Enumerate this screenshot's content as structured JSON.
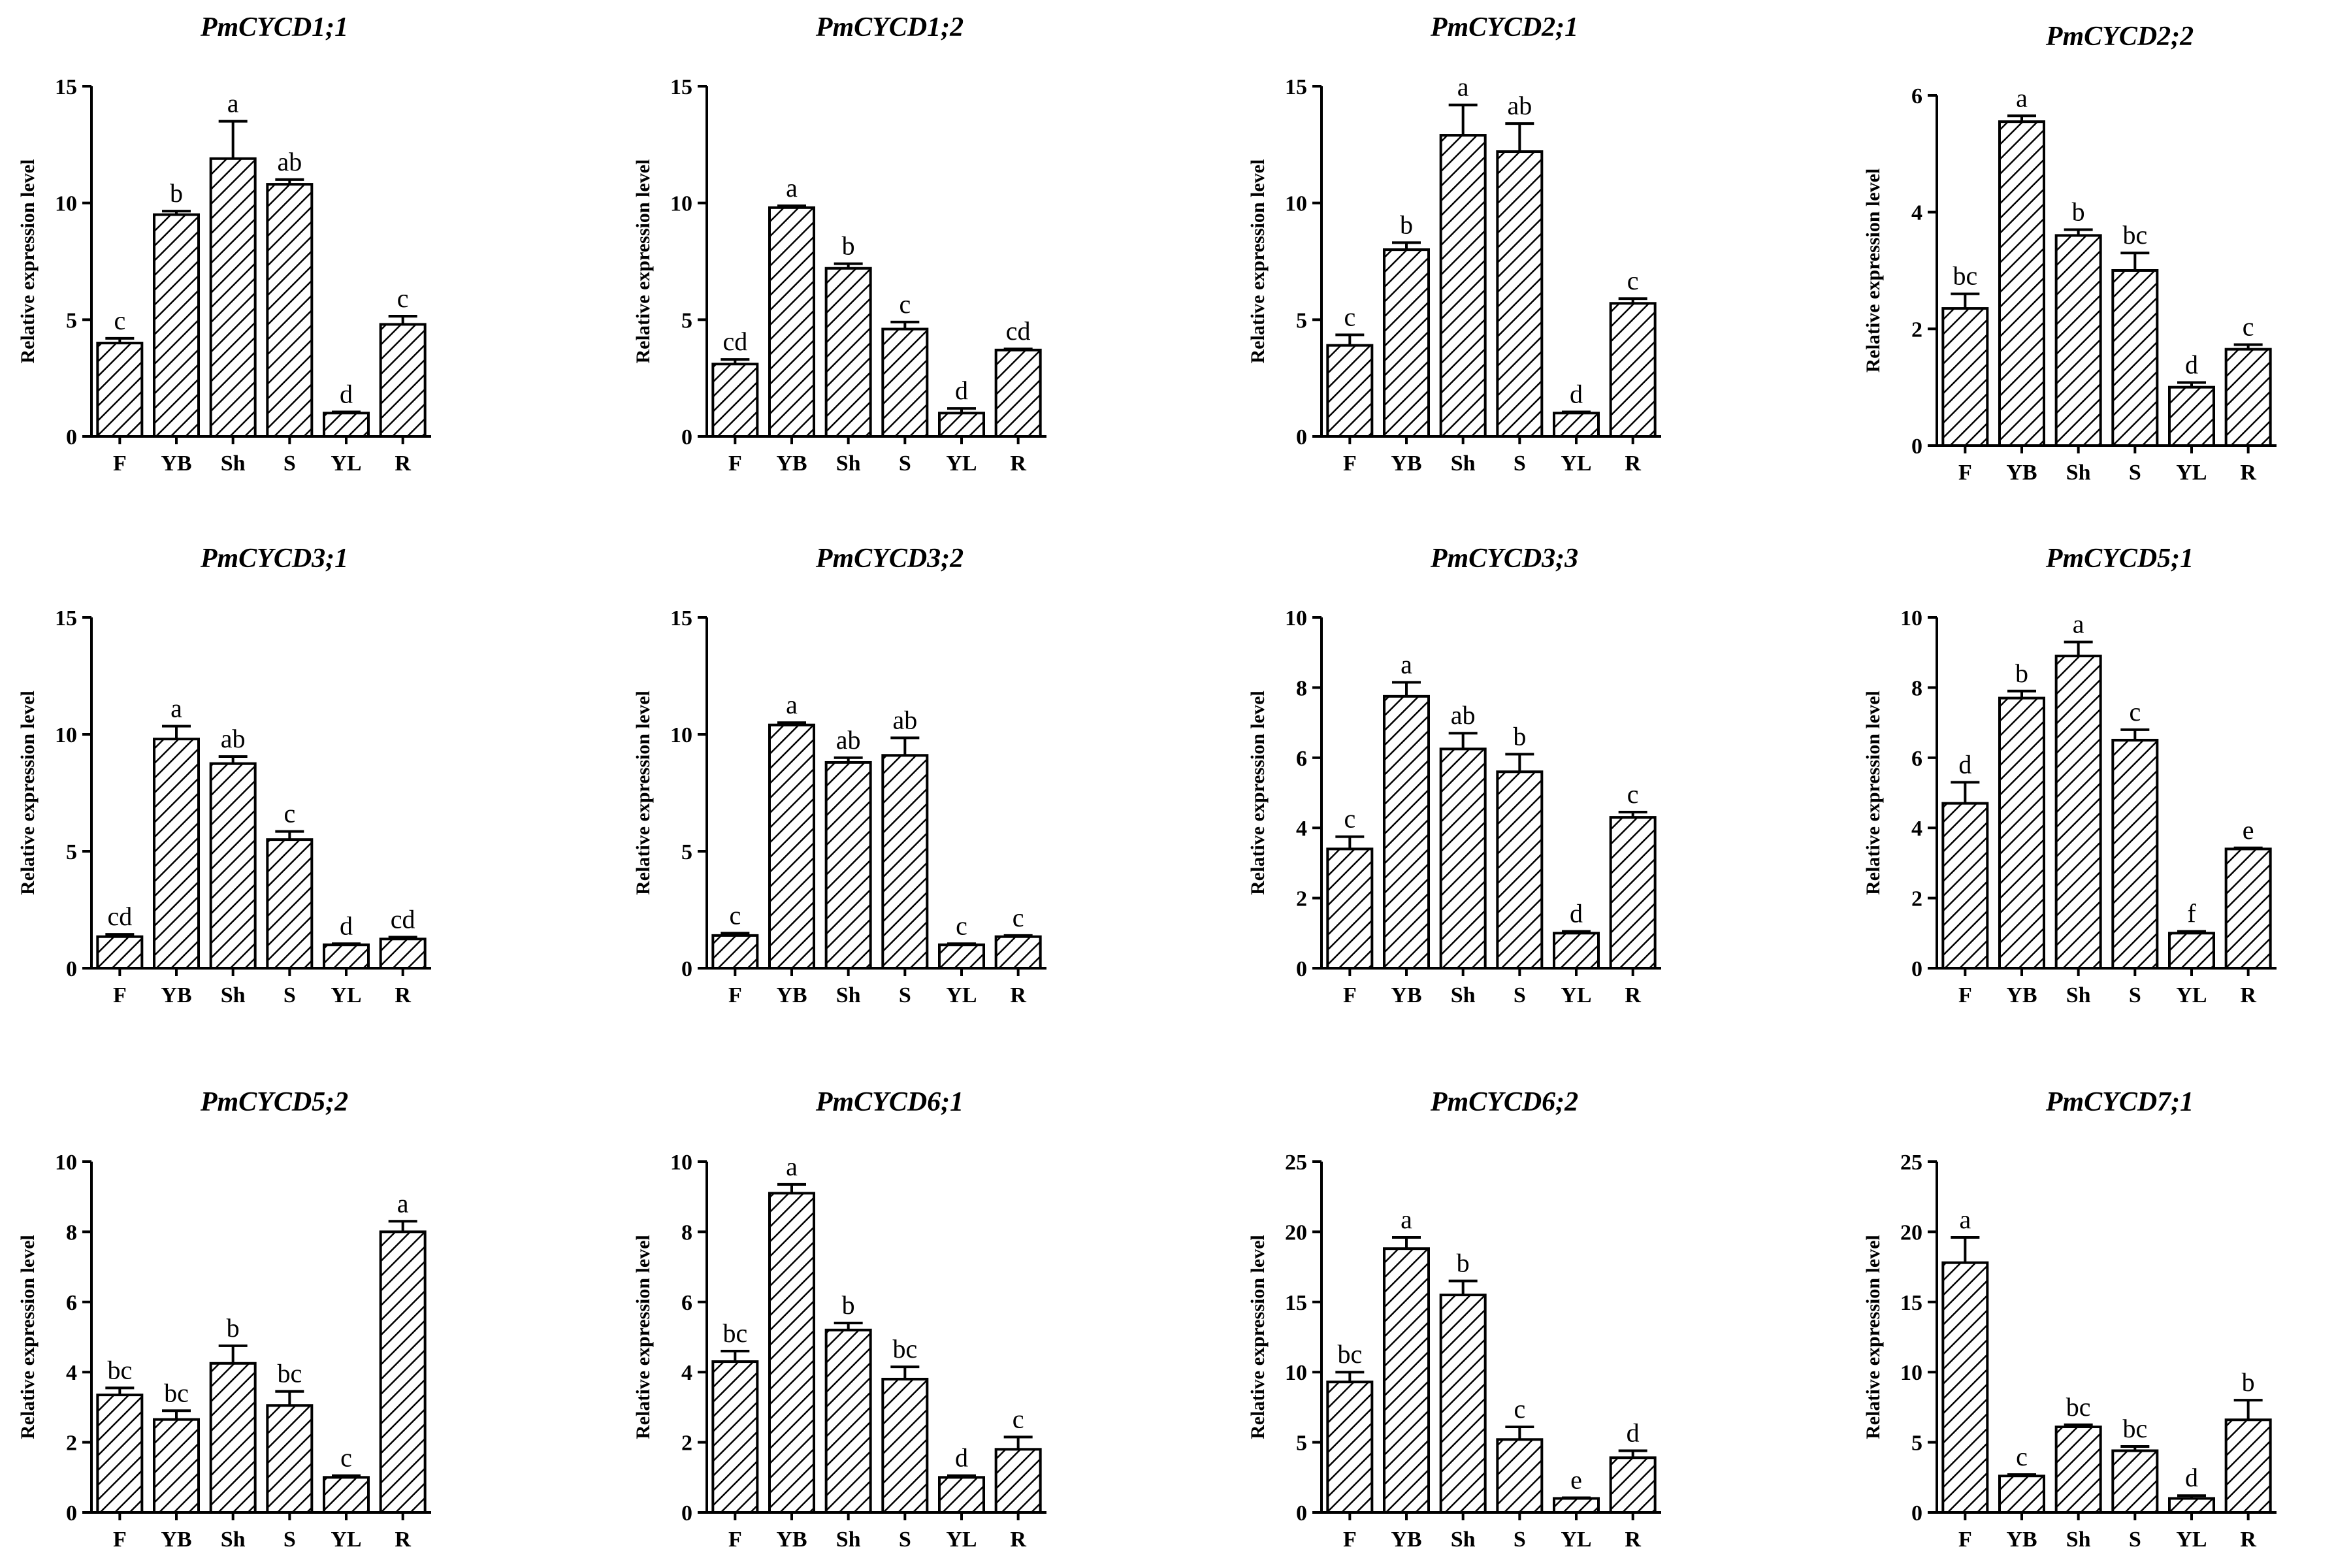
{
  "chart_data": [
    {
      "type": "bar",
      "title": "PmCYCD1;1",
      "ylabel": "Relative expression level",
      "ylim": [
        0,
        15
      ],
      "yticks": [
        0,
        5,
        10,
        15
      ],
      "categories": [
        "F",
        "YB",
        "Sh",
        "S",
        "YL",
        "R"
      ],
      "values": [
        4.0,
        9.5,
        11.9,
        10.8,
        1.0,
        4.8
      ],
      "errors": [
        0.2,
        0.15,
        1.6,
        0.2,
        0.05,
        0.35
      ],
      "letters": [
        "c",
        "b",
        "a",
        "ab",
        "d",
        "c"
      ]
    },
    {
      "type": "bar",
      "title": "PmCYCD1;2",
      "ylabel": "Relative expression level",
      "ylim": [
        0,
        15
      ],
      "yticks": [
        0,
        5,
        10,
        15
      ],
      "categories": [
        "F",
        "YB",
        "Sh",
        "S",
        "YL",
        "R"
      ],
      "values": [
        3.1,
        9.8,
        7.2,
        4.6,
        1.0,
        3.7
      ],
      "errors": [
        0.2,
        0.08,
        0.2,
        0.3,
        0.2,
        0.05
      ],
      "letters": [
        "cd",
        "a",
        "b",
        "c",
        "d",
        "cd"
      ]
    },
    {
      "type": "bar",
      "title": "PmCYCD2;1",
      "ylabel": "Relative expression level",
      "ylim": [
        0,
        15
      ],
      "yticks": [
        0,
        5,
        10,
        15
      ],
      "categories": [
        "F",
        "YB",
        "Sh",
        "S",
        "YL",
        "R"
      ],
      "values": [
        3.9,
        8.0,
        12.9,
        12.2,
        1.0,
        5.7
      ],
      "errors": [
        0.45,
        0.3,
        1.3,
        1.2,
        0.05,
        0.2
      ],
      "letters": [
        "c",
        "b",
        "a",
        "ab",
        "d",
        "c"
      ]
    },
    {
      "type": "bar",
      "title": "PmCYCD2;2",
      "ylabel": "Relative expression level",
      "ylim": [
        0,
        6
      ],
      "yticks": [
        0,
        2,
        4,
        6
      ],
      "categories": [
        "F",
        "YB",
        "Sh",
        "S",
        "YL",
        "R"
      ],
      "values": [
        2.35,
        5.55,
        3.6,
        3.0,
        1.0,
        1.65
      ],
      "errors": [
        0.25,
        0.1,
        0.1,
        0.3,
        0.08,
        0.08
      ],
      "letters": [
        "bc",
        "a",
        "b",
        "bc",
        "d",
        "c"
      ]
    },
    {
      "type": "bar",
      "title": "PmCYCD3;1",
      "ylabel": "Relative expression level",
      "ylim": [
        0,
        15
      ],
      "yticks": [
        0,
        5,
        10,
        15
      ],
      "categories": [
        "F",
        "YB",
        "Sh",
        "S",
        "YL",
        "R"
      ],
      "values": [
        1.35,
        9.8,
        8.75,
        5.5,
        1.0,
        1.25
      ],
      "errors": [
        0.1,
        0.55,
        0.3,
        0.35,
        0.05,
        0.08
      ],
      "letters": [
        "cd",
        "a",
        "ab",
        "c",
        "d",
        "cd"
      ]
    },
    {
      "type": "bar",
      "title": "PmCYCD3;2",
      "ylabel": "Relative expression level",
      "ylim": [
        0,
        15
      ],
      "yticks": [
        0,
        5,
        10,
        15
      ],
      "categories": [
        "F",
        "YB",
        "Sh",
        "S",
        "YL",
        "R"
      ],
      "values": [
        1.4,
        10.4,
        8.8,
        9.1,
        1.0,
        1.35
      ],
      "errors": [
        0.1,
        0.1,
        0.2,
        0.75,
        0.05,
        0.05
      ],
      "letters": [
        "c",
        "a",
        "ab",
        "ab",
        "c",
        "c"
      ]
    },
    {
      "type": "bar",
      "title": "PmCYCD3;3",
      "ylabel": "Relative expression level",
      "ylim": [
        0,
        10
      ],
      "yticks": [
        0,
        2,
        4,
        6,
        8,
        10
      ],
      "categories": [
        "F",
        "YB",
        "Sh",
        "S",
        "YL",
        "R"
      ],
      "values": [
        3.4,
        7.75,
        6.25,
        5.6,
        1.0,
        4.3
      ],
      "errors": [
        0.35,
        0.4,
        0.45,
        0.5,
        0.05,
        0.15
      ],
      "letters": [
        "c",
        "a",
        "ab",
        "b",
        "d",
        "c"
      ]
    },
    {
      "type": "bar",
      "title": "PmCYCD5;1",
      "ylabel": "Relative expression level",
      "ylim": [
        0,
        10
      ],
      "yticks": [
        0,
        2,
        4,
        6,
        8,
        10
      ],
      "categories": [
        "F",
        "YB",
        "Sh",
        "S",
        "YL",
        "R"
      ],
      "values": [
        4.7,
        7.7,
        8.9,
        6.5,
        1.0,
        3.4
      ],
      "errors": [
        0.6,
        0.2,
        0.4,
        0.3,
        0.05,
        0.03
      ],
      "letters": [
        "d",
        "b",
        "a",
        "c",
        "f",
        "e"
      ]
    },
    {
      "type": "bar",
      "title": "PmCYCD5;2",
      "ylabel": "Relative expression level",
      "ylim": [
        0,
        10
      ],
      "yticks": [
        0,
        2,
        4,
        6,
        8,
        10
      ],
      "categories": [
        "F",
        "YB",
        "Sh",
        "S",
        "YL",
        "R"
      ],
      "values": [
        3.35,
        2.65,
        4.25,
        3.05,
        1.0,
        8.0
      ],
      "errors": [
        0.2,
        0.25,
        0.5,
        0.4,
        0.05,
        0.3
      ],
      "letters": [
        "bc",
        "bc",
        "b",
        "bc",
        "c",
        "a"
      ]
    },
    {
      "type": "bar",
      "title": "PmCYCD6;1",
      "ylabel": "Relative expression level",
      "ylim": [
        0,
        10
      ],
      "yticks": [
        0,
        2,
        4,
        6,
        8,
        10
      ],
      "categories": [
        "F",
        "YB",
        "Sh",
        "S",
        "YL",
        "R"
      ],
      "values": [
        4.3,
        9.1,
        5.2,
        3.8,
        1.0,
        1.8
      ],
      "errors": [
        0.3,
        0.25,
        0.2,
        0.35,
        0.05,
        0.35
      ],
      "letters": [
        "bc",
        "a",
        "b",
        "bc",
        "d",
        "c"
      ]
    },
    {
      "type": "bar",
      "title": "PmCYCD6;2",
      "ylabel": "Relative expression level",
      "ylim": [
        0,
        25
      ],
      "yticks": [
        0,
        5,
        10,
        15,
        20,
        25
      ],
      "categories": [
        "F",
        "YB",
        "Sh",
        "S",
        "YL",
        "R"
      ],
      "values": [
        9.3,
        18.8,
        15.5,
        5.2,
        1.0,
        3.9
      ],
      "errors": [
        0.7,
        0.8,
        1.0,
        0.9,
        0.05,
        0.5
      ],
      "letters": [
        "bc",
        "a",
        "b",
        "c",
        "e",
        "d"
      ]
    },
    {
      "type": "bar",
      "title": "PmCYCD7;1",
      "ylabel": "Relative expression level",
      "ylim": [
        0,
        25
      ],
      "yticks": [
        0,
        5,
        10,
        15,
        20,
        25
      ],
      "categories": [
        "F",
        "YB",
        "Sh",
        "S",
        "YL",
        "R"
      ],
      "values": [
        17.8,
        2.6,
        6.1,
        4.4,
        1.0,
        6.6
      ],
      "errors": [
        1.8,
        0.1,
        0.15,
        0.3,
        0.2,
        1.4
      ],
      "letters": [
        "a",
        "c",
        "bc",
        "bc",
        "d",
        "b"
      ]
    }
  ]
}
